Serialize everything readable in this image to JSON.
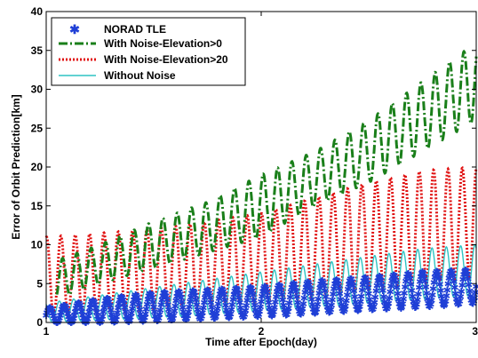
{
  "chart_data": {
    "type": "line",
    "title": "",
    "xlabel": "Time after Epoch(day)",
    "ylabel": "Error of Orbit Prediction[km]",
    "xlim": [
      1,
      3
    ],
    "ylim": [
      0,
      40
    ],
    "xticks": [
      "1",
      "2",
      "3"
    ],
    "yticks": [
      "0",
      "5",
      "10",
      "15",
      "20",
      "25",
      "30",
      "35",
      "40"
    ],
    "grid": false,
    "legend_position": "top-left",
    "oscillations_per_day": 15,
    "series": [
      {
        "name": "NORAD TLE",
        "color": "#1f3fd6",
        "style": "star-markers",
        "x": [
          1.0,
          1.25,
          1.5,
          1.75,
          2.0,
          2.25,
          2.5,
          2.75,
          3.0
        ],
        "lower": [
          0.0,
          0.0,
          0.2,
          0.5,
          0.8,
          1.2,
          1.6,
          2.0,
          2.5
        ],
        "upper": [
          1.8,
          3.0,
          3.8,
          4.2,
          4.6,
          5.3,
          5.8,
          6.5,
          6.8
        ]
      },
      {
        "name": "With Noise-Elevation>0",
        "color": "#1a7f1a",
        "style": "dash-dot",
        "x": [
          1.05,
          1.25,
          1.5,
          1.75,
          2.0,
          2.25,
          2.5,
          2.75,
          3.0
        ],
        "lower": [
          3.0,
          5.0,
          7.0,
          9.0,
          11.0,
          15.0,
          18.0,
          22.0,
          26.0
        ],
        "upper": [
          8.0,
          10.0,
          13.0,
          15.5,
          19.0,
          22.0,
          26.0,
          31.0,
          36.0
        ]
      },
      {
        "name": "With Noise-Elevation>20",
        "color": "#e01010",
        "style": "dotted",
        "x": [
          1.0,
          1.25,
          1.5,
          1.75,
          2.0,
          2.25,
          2.5,
          2.75,
          3.0
        ],
        "lower": [
          0.5,
          1.0,
          1.5,
          2.0,
          2.5,
          3.0,
          4.0,
          5.0,
          6.0
        ],
        "upper": [
          11.0,
          11.5,
          12.0,
          13.0,
          14.0,
          16.0,
          18.0,
          19.5,
          20.0
        ]
      },
      {
        "name": "Without Noise",
        "color": "#2ec4c4",
        "style": "solid",
        "x": [
          1.0,
          1.25,
          1.5,
          1.75,
          2.0,
          2.25,
          2.5,
          2.75,
          3.0
        ],
        "lower": [
          0.0,
          0.3,
          0.6,
          1.0,
          1.5,
          2.0,
          2.5,
          3.0,
          3.5
        ],
        "upper": [
          2.5,
          3.5,
          4.5,
          5.5,
          6.5,
          7.5,
          8.5,
          9.5,
          10.0
        ]
      }
    ]
  }
}
